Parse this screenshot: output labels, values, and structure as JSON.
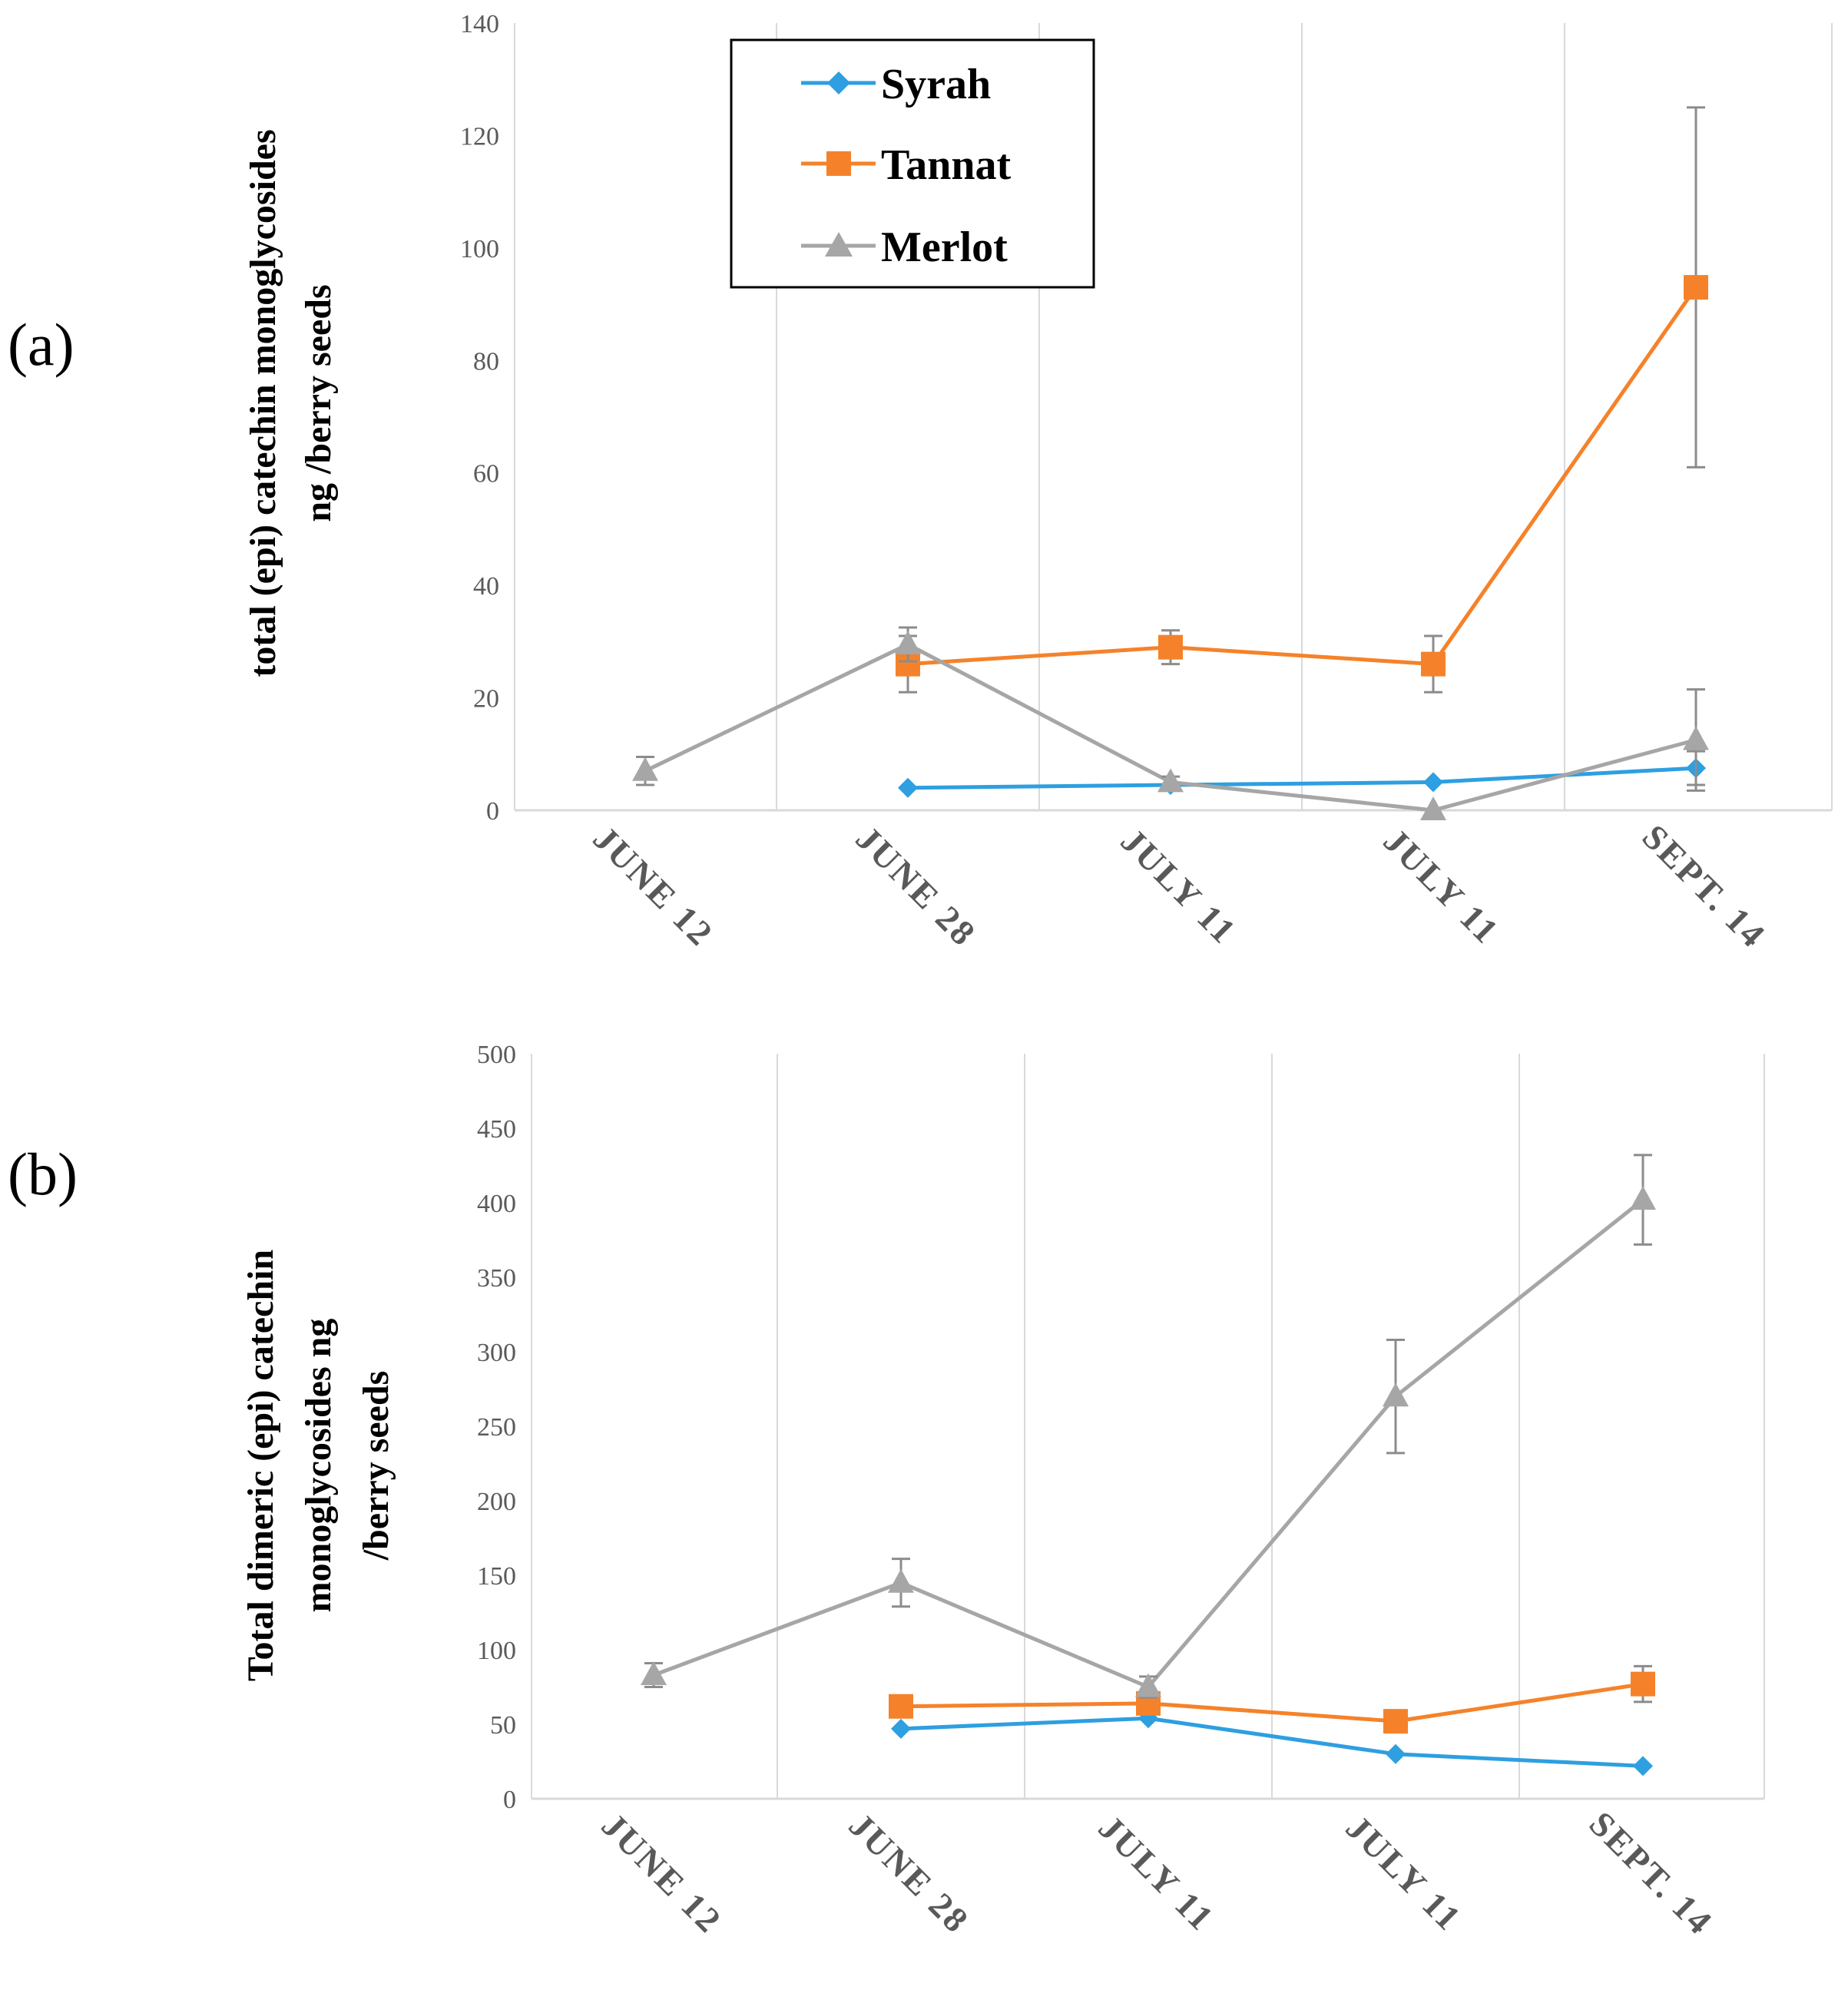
{
  "colors": {
    "Syrah": "#2E9FE0",
    "Tannat": "#F5822A",
    "Merlot": "#A6A6A6"
  },
  "chart_data": [
    {
      "panel_label": "(a)",
      "type": "line",
      "ylabel": [
        "total (epi) catechin monoglycosides",
        "ng  /berry seeds"
      ],
      "categories": [
        "JUNE 12",
        "JUNE 28",
        "JULY 11",
        "JULY 11",
        "SEPT. 14"
      ],
      "ylim": [
        0,
        140
      ],
      "yticks": [
        "0",
        "20",
        "40",
        "60",
        "80",
        "100",
        "120",
        "140"
      ],
      "grid": "vertical",
      "legend": "top-center",
      "series": [
        {
          "name": "Syrah",
          "marker": "diamond",
          "values": [
            null,
            4,
            4.5,
            5,
            7.5
          ],
          "err": [
            null,
            0,
            0,
            0,
            3
          ]
        },
        {
          "name": "Tannat",
          "marker": "square",
          "values": [
            null,
            26,
            29,
            26,
            93
          ],
          "err": [
            null,
            5,
            3,
            5,
            32
          ]
        },
        {
          "name": "Merlot",
          "marker": "triangle",
          "values": [
            7,
            29.5,
            5,
            0,
            12.5
          ],
          "err": [
            2.5,
            3,
            1,
            0,
            9
          ]
        }
      ]
    },
    {
      "panel_label": "(b)",
      "type": "line",
      "ylabel": [
        "Total dimeric (epi) catechin",
        "monoglycosides  ng",
        "/berry seeds"
      ],
      "categories": [
        "JUNE 12",
        "JUNE 28",
        "JULY 11",
        "JULY 11",
        "SEPT. 14"
      ],
      "ylim": [
        0,
        500
      ],
      "yticks": [
        "0",
        "50",
        "100",
        "150",
        "200",
        "250",
        "300",
        "350",
        "400",
        "450",
        "500"
      ],
      "grid": "vertical",
      "series": [
        {
          "name": "Syrah",
          "marker": "diamond",
          "values": [
            null,
            47,
            54,
            30,
            22
          ],
          "err": [
            null,
            0,
            0,
            0,
            0
          ]
        },
        {
          "name": "Tannat",
          "marker": "square",
          "values": [
            null,
            62,
            64,
            52,
            77
          ],
          "err": [
            null,
            0,
            0,
            0,
            12
          ]
        },
        {
          "name": "Merlot",
          "marker": "triangle",
          "values": [
            83,
            145,
            75,
            270,
            402
          ],
          "err": [
            8,
            16,
            7,
            38,
            30
          ]
        }
      ]
    }
  ]
}
